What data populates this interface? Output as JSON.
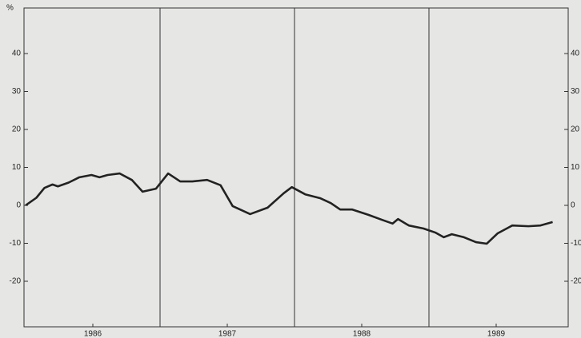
{
  "chart_data": {
    "type": "line",
    "y_unit": "%",
    "x": [
      1986.0,
      1986.08,
      1986.14,
      1986.2,
      1986.24,
      1986.32,
      1986.4,
      1986.49,
      1986.55,
      1986.61,
      1986.7,
      1986.79,
      1986.87,
      1986.97,
      1987.06,
      1987.15,
      1987.24,
      1987.35,
      1987.45,
      1987.54,
      1987.67,
      1987.8,
      1987.92,
      1987.98,
      1988.08,
      1988.19,
      1988.27,
      1988.34,
      1988.43,
      1988.55,
      1988.65,
      1988.73,
      1988.77,
      1988.85,
      1988.96,
      1989.05,
      1989.11,
      1989.17,
      1989.26,
      1989.35,
      1989.43,
      1989.51,
      1989.62,
      1989.74,
      1989.83,
      1989.92
    ],
    "series": [
      {
        "color": "#222222",
        "values": [
          0,
          2,
          4.6,
          5.5,
          5,
          6,
          7.4,
          8,
          7.4,
          8,
          8.4,
          6.7,
          3.6,
          4.4,
          8.4,
          6.3,
          6.3,
          6.7,
          5.3,
          -0.2,
          -2.3,
          -0.6,
          3.2,
          4.8,
          2.9,
          1.9,
          0.6,
          -1.1,
          -1.1,
          -2.5,
          -3.8,
          -4.8,
          -3.6,
          -5.3,
          -6.1,
          -7.2,
          -8.4,
          -7.6,
          -8.4,
          -9.7,
          -10.1,
          -7.4,
          -5.3,
          -5.5,
          -5.3,
          -4.4
        ]
      }
    ],
    "xlim": [
      1986,
      1990
    ],
    "xticks": [
      {
        "value": 1986.5,
        "label": "1986"
      },
      {
        "value": 1987.5,
        "label": "1987"
      },
      {
        "value": 1988.5,
        "label": "1988"
      },
      {
        "value": 1989.5,
        "label": "1989"
      }
    ],
    "xgrid": [
      1987,
      1988,
      1989
    ],
    "ylim": [
      -32,
      52
    ],
    "yticks": [
      -20,
      -10,
      0,
      10,
      20,
      30,
      40
    ],
    "right_axis": true,
    "grid": true
  }
}
